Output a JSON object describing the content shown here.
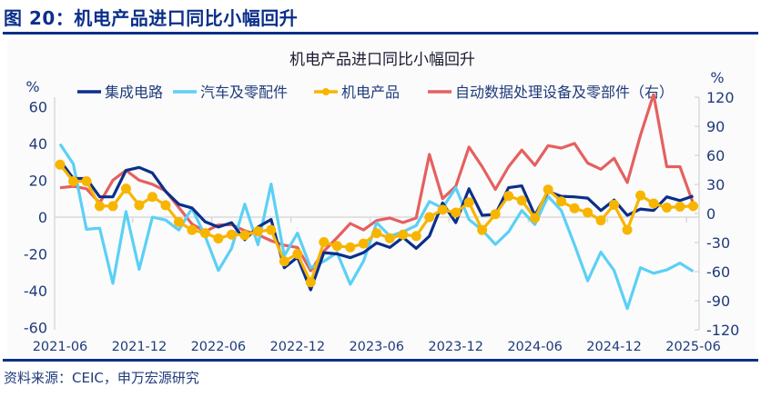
{
  "figure_title": "图 20：机电产品进口同比小幅回升",
  "source": "资料来源：CEIC，申万宏源研究",
  "chart_data": {
    "type": "line",
    "title": "机电产品进口同比小幅回升",
    "left_unit": "%",
    "right_unit": "%",
    "x": [
      "2021-06",
      "2021-07",
      "2021-08",
      "2021-09",
      "2021-10",
      "2021-11",
      "2021-12",
      "2022-01",
      "2022-02",
      "2022-03",
      "2022-04",
      "2022-05",
      "2022-06",
      "2022-07",
      "2022-08",
      "2022-09",
      "2022-10",
      "2022-11",
      "2022-12",
      "2023-01",
      "2023-02",
      "2023-03",
      "2023-04",
      "2023-05",
      "2023-06",
      "2023-07",
      "2023-08",
      "2023-09",
      "2023-10",
      "2023-11",
      "2023-12",
      "2024-01",
      "2024-02",
      "2024-03",
      "2024-04",
      "2024-05",
      "2024-06",
      "2024-07",
      "2024-08",
      "2024-09",
      "2024-10",
      "2024-11",
      "2024-12",
      "2025-01",
      "2025-02",
      "2025-03",
      "2025-04",
      "2025-05",
      "2025-06"
    ],
    "x_tick_labels": [
      "2021-06",
      "2021-12",
      "2022-06",
      "2022-12",
      "2023-06",
      "2023-12",
      "2024-06",
      "2024-12",
      "2025-06"
    ],
    "left_ylim": [
      -60,
      60
    ],
    "left_ticks": [
      60,
      40,
      20,
      0,
      -20,
      -40,
      -60
    ],
    "right_ylim": [
      -120,
      120
    ],
    "right_ticks": [
      120,
      90,
      60,
      30,
      0,
      -30,
      -60,
      -90,
      -120
    ],
    "grid": false,
    "legend": "top",
    "series": [
      {
        "name": "集成电路",
        "axis": "left",
        "color": "#0b2f8a",
        "marker": false,
        "values": [
          30.7,
          21,
          21,
          11,
          11,
          25.4,
          27,
          24,
          14,
          7,
          5,
          -2.5,
          -5.4,
          -3,
          -12.3,
          -5.4,
          -1.3,
          -27.5,
          -21.8,
          -39.5,
          -19.3,
          -20,
          -22,
          -19.3,
          -14,
          -16.5,
          -11,
          -17,
          -10.3,
          7.7,
          -3,
          15.4,
          1,
          1.5,
          16,
          17,
          1,
          14,
          11.3,
          11,
          10.3,
          3.6,
          9.3,
          1,
          4.4,
          3.6,
          11,
          9,
          11.5
        ]
      },
      {
        "name": "汽车及零配件",
        "axis": "left",
        "color": "#5bd0f5",
        "marker": false,
        "values": [
          39.7,
          29,
          -6.6,
          -6,
          -36,
          3,
          -28.4,
          0,
          -1.6,
          -7,
          4.8,
          -10.3,
          -29,
          -17,
          7,
          -15,
          18,
          -21,
          -8.7,
          -27.5,
          -24,
          -19.3,
          -36.5,
          -24,
          -3,
          -10.3,
          -8,
          -4.6,
          8.5,
          5,
          16,
          -1.3,
          -7,
          -14.8,
          -8,
          3.6,
          -4,
          11.3,
          3.6,
          -15,
          -34.6,
          -19,
          -29,
          -49.7,
          -27.5,
          -30.5,
          -28.7,
          -25,
          -29.5
        ]
      },
      {
        "name": "机电产品",
        "axis": "left",
        "color": "#f7b500",
        "marker": true,
        "values": [
          28.5,
          19.5,
          19.5,
          6,
          6,
          15.5,
          6.5,
          11,
          6.5,
          -2.6,
          -7,
          -8.7,
          -11.6,
          -9.5,
          -9.8,
          -7.7,
          -7,
          -24,
          -20,
          -35.4,
          -13.6,
          -15.7,
          -16.4,
          -14.4,
          -8.7,
          -11.5,
          -9.5,
          -10.3,
          0,
          4,
          2.5,
          8,
          -7,
          1.6,
          11.5,
          9,
          -0.5,
          15,
          8.5,
          4.8,
          2.5,
          -1.8,
          6.7,
          -6.9,
          11.8,
          7.4,
          5.2,
          5.7,
          6
        ]
      },
      {
        "name": "自动数据处理设备及零部件（右）",
        "axis": "right",
        "color": "#e5605f",
        "marker": false,
        "values": [
          26.5,
          28,
          25.5,
          10.9,
          34.3,
          44.5,
          34.3,
          30.2,
          23.3,
          6.2,
          -10.9,
          -18.7,
          -11.8,
          -11.5,
          -17.8,
          -21.8,
          -28.1,
          -32.7,
          -35.1,
          -59.2,
          -38.9,
          -24.9,
          -10.3,
          -17,
          -7.2,
          -4.7,
          -9.4,
          -4.7,
          60.9,
          15.3,
          28,
          68.5,
          48.3,
          24.8,
          48.3,
          65.4,
          49.8,
          70,
          67.5,
          72.3,
          52,
          45.7,
          57,
          32,
          80.8,
          123,
          48.3,
          48.3,
          10.3
        ]
      }
    ]
  }
}
